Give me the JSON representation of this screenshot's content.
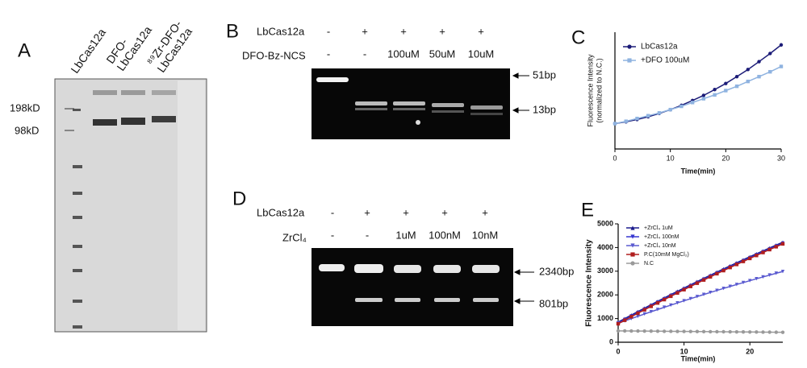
{
  "panels": {
    "A": {
      "label": "A",
      "lanes": [
        {
          "lines": [
            "LbCas12a"
          ]
        },
        {
          "lines": [
            "DFO-",
            "LbCas12a"
          ]
        },
        {
          "lines": [
            "⁸⁹Zr-DFO-",
            "LbCas12a"
          ]
        }
      ],
      "markers": [
        "198kD",
        "98kD"
      ]
    },
    "B": {
      "label": "B",
      "rows": [
        {
          "name": "LbCas12a",
          "values": [
            "-",
            "+",
            "+",
            "+",
            "+"
          ]
        },
        {
          "name": "DFO-Bz-NCS",
          "values": [
            "-",
            "-",
            "100uM",
            "50uM",
            "10uM"
          ]
        }
      ],
      "bands": [
        "51bp",
        "13bp"
      ]
    },
    "D": {
      "label": "D",
      "rows": [
        {
          "name": "LbCas12a",
          "values": [
            "-",
            "+",
            "+",
            "+",
            "+"
          ]
        },
        {
          "name": "ZrCl₄",
          "values": [
            "-",
            "-",
            "1uM",
            "100nM",
            "10nM"
          ]
        }
      ],
      "bands": [
        "2340bp",
        "801bp"
      ]
    }
  },
  "chart_data": [
    {
      "type": "line",
      "label": "C",
      "y_label": [
        "Fluorescence Intensity",
        "(normalized to N.C.)"
      ],
      "x_label": "Time(min)",
      "x": [
        0,
        2,
        4,
        6,
        8,
        10,
        12,
        14,
        16,
        18,
        20,
        22,
        24,
        26,
        28,
        30
      ],
      "xlim": [
        0,
        30
      ],
      "xticks": [
        0,
        10,
        20,
        30
      ],
      "ylim": [
        0,
        4.6
      ],
      "legend": "upper left",
      "series": [
        {
          "name": "LbCas12a",
          "color": "#1c1c78",
          "marker": "circle",
          "values": [
            1.0,
            1.07,
            1.16,
            1.27,
            1.4,
            1.55,
            1.72,
            1.91,
            2.11,
            2.34,
            2.58,
            2.85,
            3.13,
            3.44,
            3.76,
            4.1
          ]
        },
        {
          "name": "+DFO 100uM",
          "color": "#8fb3e0",
          "marker": "square",
          "values": [
            1.0,
            1.09,
            1.2,
            1.31,
            1.42,
            1.55,
            1.68,
            1.83,
            1.98,
            2.13,
            2.3,
            2.47,
            2.66,
            2.85,
            3.04,
            3.25
          ]
        }
      ]
    },
    {
      "type": "line",
      "label": "E",
      "y_label": [
        "Fluorescence Intensity"
      ],
      "x_label": "Time(min)",
      "x": [
        0,
        1,
        2,
        3,
        4,
        5,
        6,
        7,
        8,
        9,
        10,
        11,
        12,
        13,
        14,
        15,
        16,
        17,
        18,
        19,
        20,
        21,
        22,
        23,
        24,
        25
      ],
      "xlim": [
        0,
        25
      ],
      "xticks": [
        0,
        10,
        20
      ],
      "ylim": [
        0,
        5000
      ],
      "yticks": [
        0,
        1000,
        2000,
        3000,
        4000,
        5000
      ],
      "legend": "upper left",
      "series": [
        {
          "name": "+ZrCl₄ 1uM",
          "color": "#1a1a8c",
          "marker": "triangle-up",
          "values": [
            850,
            999,
            1148,
            1295,
            1440,
            1585,
            1728,
            1871,
            2012,
            2151,
            2290,
            2427,
            2564,
            2699,
            2832,
            2965,
            3096,
            3227,
            3356,
            3483,
            3610,
            3735,
            3860,
            3983,
            4104,
            4225
          ]
        },
        {
          "name": "+ZrCl₄ 100nM",
          "color": "#3535d0",
          "marker": "triangle-down",
          "values": [
            810,
            959,
            1108,
            1255,
            1400,
            1545,
            1688,
            1831,
            1972,
            2111,
            2250,
            2387,
            2524,
            2659,
            2792,
            2925,
            3056,
            3187,
            3316,
            3443,
            3570,
            3695,
            3820,
            3943,
            4064,
            4185
          ]
        },
        {
          "name": "+ZrCl₄ 10nM",
          "color": "#5a5ad0",
          "marker": "triangle-down",
          "values": [
            800,
            900,
            998,
            1096,
            1192,
            1288,
            1382,
            1476,
            1568,
            1660,
            1750,
            1840,
            1928,
            2016,
            2102,
            2188,
            2272,
            2356,
            2438,
            2520,
            2600,
            2680,
            2758,
            2836,
            2912,
            2988
          ]
        },
        {
          "name": "P.C(10mM MgCl₂)",
          "color": "#b01e1e",
          "marker": "square",
          "values": [
            780,
            929,
            1078,
            1225,
            1370,
            1515,
            1658,
            1801,
            1942,
            2081,
            2220,
            2357,
            2494,
            2629,
            2762,
            2895,
            3026,
            3157,
            3286,
            3413,
            3540,
            3665,
            3790,
            3913,
            4034,
            4155
          ]
        },
        {
          "name": "N.C",
          "color": "#9a9a9a",
          "marker": "circle",
          "values": [
            480,
            478,
            475,
            473,
            470,
            468,
            466,
            463,
            461,
            458,
            456,
            454,
            451,
            449,
            446,
            444,
            442,
            439,
            437,
            434,
            432,
            430,
            427,
            425,
            422,
            420
          ]
        }
      ]
    }
  ]
}
